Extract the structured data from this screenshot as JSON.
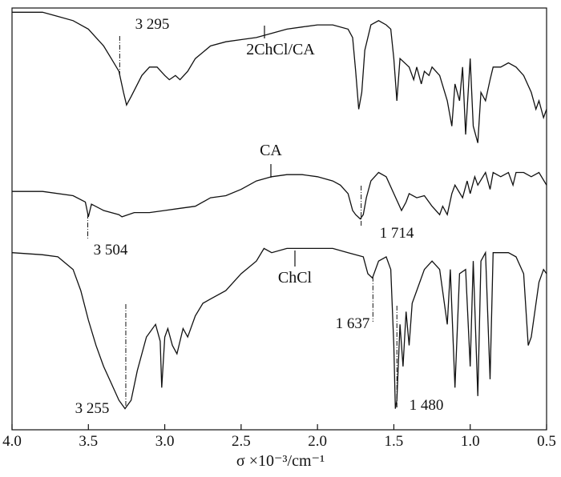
{
  "chart_data": {
    "type": "line",
    "x_label": "σ ×10⁻³/cm⁻¹",
    "xlim": [
      4.0,
      0.5
    ],
    "xticks": [
      {
        "value": 4.0,
        "label": "4.0"
      },
      3.5,
      {
        "value": 3.0,
        "label": "3.0"
      },
      2.5,
      {
        "value": 2.0,
        "label": "2.0"
      },
      1.5,
      {
        "value": 1.0,
        "label": "1.0"
      },
      0.5
    ],
    "ylim": [
      0,
      100
    ],
    "series": [
      {
        "name": "2ChCl/CA",
        "color": "#111111",
        "x": [
          4.0,
          3.8,
          3.7,
          3.6,
          3.5,
          3.45,
          3.4,
          3.35,
          3.3,
          3.27,
          3.25,
          3.22,
          3.15,
          3.1,
          3.05,
          3.0,
          2.97,
          2.93,
          2.9,
          2.85,
          2.8,
          2.7,
          2.6,
          2.5,
          2.4,
          2.3,
          2.2,
          2.1,
          2.0,
          1.9,
          1.8,
          1.77,
          1.75,
          1.73,
          1.71,
          1.69,
          1.65,
          1.6,
          1.55,
          1.52,
          1.5,
          1.48,
          1.46,
          1.4,
          1.37,
          1.35,
          1.32,
          1.3,
          1.27,
          1.25,
          1.2,
          1.15,
          1.12,
          1.1,
          1.07,
          1.05,
          1.03,
          1.0,
          0.98,
          0.95,
          0.93,
          0.9,
          0.87,
          0.85,
          0.8,
          0.75,
          0.7,
          0.65,
          0.6,
          0.57,
          0.55,
          0.52,
          0.5
        ],
        "values": [
          99,
          99,
          98,
          97,
          95,
          93,
          91,
          88,
          85,
          80,
          77,
          79,
          84,
          86,
          86,
          84,
          83,
          84,
          83,
          85,
          88,
          91,
          92,
          92.5,
          93,
          94,
          95,
          95.5,
          96,
          96,
          95,
          93,
          85,
          76,
          80,
          90,
          96,
          97,
          96,
          95,
          88,
          78,
          88,
          86,
          83,
          86,
          82,
          85,
          84,
          86,
          84,
          78,
          72,
          82,
          78,
          86,
          70,
          88,
          72,
          68,
          80,
          78,
          83,
          86,
          86,
          87,
          86,
          84,
          80,
          76,
          78,
          74,
          76
        ],
        "peaks": [
          {
            "x": 3.295,
            "label": "3 295"
          }
        ]
      },
      {
        "name": "CA",
        "color": "#111111",
        "x": [
          4.0,
          3.8,
          3.6,
          3.52,
          3.5,
          3.48,
          3.4,
          3.3,
          3.28,
          3.2,
          3.1,
          3.0,
          2.9,
          2.8,
          2.7,
          2.6,
          2.5,
          2.4,
          2.3,
          2.2,
          2.1,
          2.0,
          1.9,
          1.85,
          1.8,
          1.77,
          1.75,
          1.72,
          1.7,
          1.68,
          1.65,
          1.6,
          1.55,
          1.5,
          1.45,
          1.42,
          1.4,
          1.35,
          1.3,
          1.25,
          1.2,
          1.18,
          1.15,
          1.12,
          1.1,
          1.05,
          1.02,
          1.0,
          0.97,
          0.95,
          0.9,
          0.87,
          0.85,
          0.8,
          0.75,
          0.72,
          0.7,
          0.65,
          0.6,
          0.55,
          0.5
        ],
        "values": [
          56.5,
          56.5,
          55.5,
          54,
          50.5,
          53.5,
          52,
          51,
          50.5,
          51.5,
          51.5,
          52,
          52.5,
          53,
          55,
          55.5,
          57,
          59,
          60,
          60.5,
          60.5,
          60,
          59,
          58,
          56,
          52,
          51,
          50,
          51,
          55,
          59,
          61,
          60,
          56,
          52,
          54,
          56,
          55,
          55.5,
          53,
          51,
          53,
          51,
          56,
          58,
          55,
          59,
          56,
          60,
          58,
          61,
          57,
          61,
          60,
          61,
          58,
          61,
          61,
          60,
          61,
          58
        ],
        "peaks": [
          {
            "x": 3.504,
            "label": "3 504"
          },
          {
            "x": 1.714,
            "label": "1 714"
          }
        ]
      },
      {
        "name": "ChCl",
        "color": "#111111",
        "x": [
          4.0,
          3.8,
          3.7,
          3.6,
          3.55,
          3.5,
          3.45,
          3.4,
          3.35,
          3.3,
          3.26,
          3.22,
          3.18,
          3.12,
          3.06,
          3.03,
          3.02,
          3.0,
          2.98,
          2.95,
          2.92,
          2.88,
          2.85,
          2.8,
          2.75,
          2.7,
          2.6,
          2.5,
          2.4,
          2.35,
          2.3,
          2.2,
          2.1,
          2.0,
          1.9,
          1.8,
          1.7,
          1.67,
          1.64,
          1.6,
          1.55,
          1.52,
          1.5,
          1.49,
          1.48,
          1.46,
          1.44,
          1.42,
          1.4,
          1.38,
          1.35,
          1.3,
          1.25,
          1.2,
          1.15,
          1.13,
          1.1,
          1.07,
          1.03,
          1.0,
          0.98,
          0.95,
          0.93,
          0.9,
          0.87,
          0.85,
          0.8,
          0.75,
          0.7,
          0.65,
          0.62,
          0.6,
          0.55,
          0.52,
          0.5
        ],
        "values": [
          42,
          41.5,
          41,
          38,
          33,
          26,
          20,
          15,
          11,
          7,
          5,
          7,
          14,
          22,
          25,
          21,
          10,
          22,
          24,
          20,
          18,
          24,
          22,
          27,
          30,
          31,
          33,
          37,
          40,
          43,
          42,
          43,
          43,
          43,
          43,
          42,
          41,
          37,
          36,
          40,
          41,
          38,
          20,
          5,
          7,
          25,
          15,
          28,
          20,
          30,
          33,
          38,
          40,
          38,
          25,
          38,
          10,
          37,
          38,
          15,
          40,
          8,
          40,
          42,
          12,
          42,
          42,
          42,
          41,
          37,
          20,
          22,
          35,
          38,
          37
        ],
        "peaks": [
          {
            "x": 1.637,
            "label": "1 637"
          },
          {
            "x": 3.255,
            "label": "3 255"
          },
          {
            "x": 1.48,
            "label": "1 480"
          }
        ]
      }
    ]
  }
}
